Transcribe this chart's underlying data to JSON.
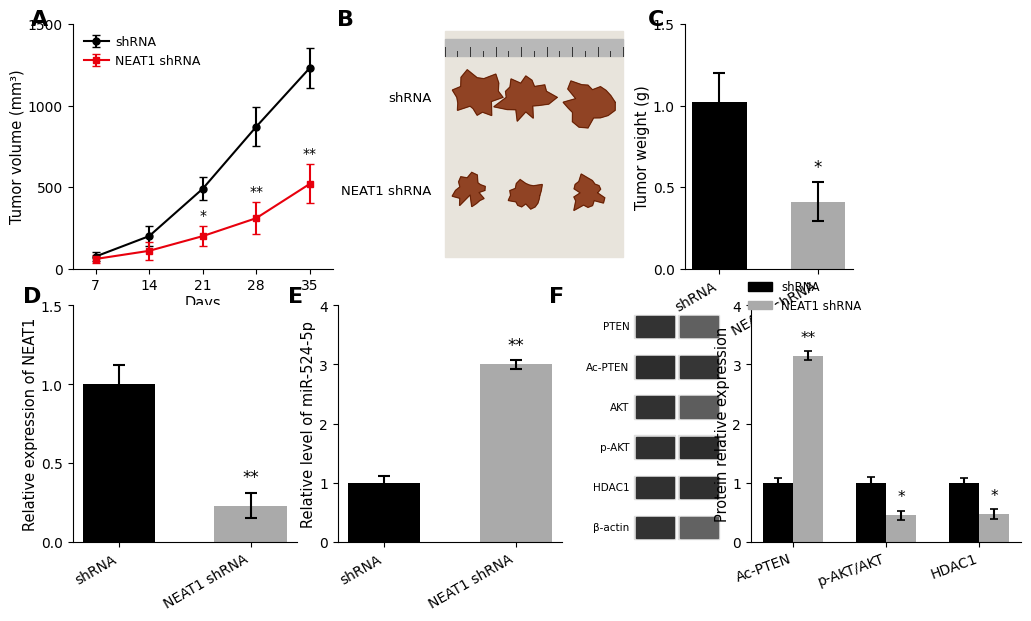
{
  "panel_A": {
    "days": [
      7,
      14,
      21,
      28,
      35
    ],
    "shRNA_mean": [
      75,
      200,
      490,
      870,
      1230
    ],
    "shRNA_err": [
      30,
      60,
      70,
      120,
      120
    ],
    "neat1_mean": [
      60,
      110,
      200,
      310,
      520
    ],
    "neat1_err": [
      25,
      55,
      60,
      100,
      120
    ],
    "sig_21": "*",
    "sig_28": "**",
    "sig_35": "**",
    "ylabel": "Tumor volume (mm³)",
    "xlabel": "Days",
    "ylim": [
      0,
      1500
    ],
    "yticks": [
      0,
      500,
      1000,
      1500
    ],
    "label_shRNA": "shRNA",
    "label_neat1": "NEAT1 shRNA",
    "color_shRNA": "#000000",
    "color_neat1": "#e8000d"
  },
  "panel_C": {
    "categories": [
      "shRNA",
      "NEAT1 shRNA"
    ],
    "values": [
      1.02,
      0.41
    ],
    "errors": [
      0.18,
      0.12
    ],
    "colors": [
      "#000000",
      "#aaaaaa"
    ],
    "ylabel": "Tumor weight (g)",
    "ylim": [
      0,
      1.5
    ],
    "yticks": [
      0.0,
      0.5,
      1.0,
      1.5
    ],
    "sig": "*"
  },
  "panel_D": {
    "categories": [
      "shRNA",
      "NEAT1 shRNA"
    ],
    "values": [
      1.0,
      0.23
    ],
    "errors": [
      0.12,
      0.08
    ],
    "colors": [
      "#000000",
      "#aaaaaa"
    ],
    "ylabel": "Relative expression of NEAT1",
    "ylim": [
      0,
      1.5
    ],
    "yticks": [
      0.0,
      0.5,
      1.0,
      1.5
    ],
    "sig": "**"
  },
  "panel_E": {
    "categories": [
      "shRNA",
      "NEAT1 shRNA"
    ],
    "values": [
      1.0,
      3.0
    ],
    "errors": [
      0.12,
      0.08
    ],
    "colors": [
      "#000000",
      "#aaaaaa"
    ],
    "ylabel": "Relative level of miR-524-5p",
    "ylim": [
      0,
      4
    ],
    "yticks": [
      0,
      1,
      2,
      3,
      4
    ],
    "sig": "**"
  },
  "panel_F_bar": {
    "groups": [
      "Ac-PTEN",
      "p-AKT/AKT",
      "HDAC1"
    ],
    "shRNA_vals": [
      1.0,
      1.0,
      1.0
    ],
    "shRNA_errs": [
      0.08,
      0.1,
      0.08
    ],
    "neat1_vals": [
      3.15,
      0.45,
      0.47
    ],
    "neat1_errs": [
      0.08,
      0.08,
      0.09
    ],
    "colors_shRNA": "#000000",
    "colors_neat1": "#aaaaaa",
    "ylabel": "Protein relative expression",
    "ylim": [
      0,
      4
    ],
    "yticks": [
      0,
      1,
      2,
      3,
      4
    ],
    "sig_ac": "**",
    "sig_pakt": "*",
    "sig_hdac1": "*"
  },
  "western": {
    "proteins": [
      "PTEN",
      "Ac-PTEN",
      "AKT",
      "p-AKT",
      "HDAC1",
      "β-actin"
    ],
    "band_dark": "#2a2a2a",
    "band_intensities_shrna": [
      0.85,
      0.75,
      0.82,
      0.8,
      0.8,
      0.85
    ],
    "band_intensities_neat1": [
      0.8,
      0.45,
      0.78,
      0.38,
      0.4,
      0.82
    ],
    "bg_color": "#d8d8d8"
  },
  "label_fontsize": 16,
  "tick_fontsize": 10,
  "axis_label_fontsize": 10.5
}
